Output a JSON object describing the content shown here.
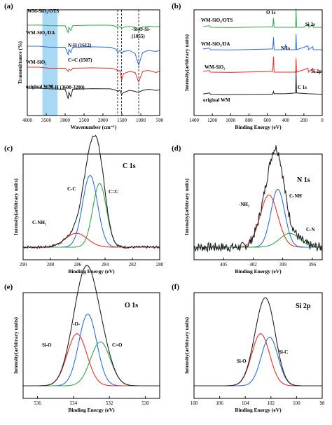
{
  "colors": {
    "black": "#222222",
    "red": "#e8302a",
    "green": "#2ea84a",
    "blue": "#2e6fd4",
    "shade": "#a9d8f5"
  },
  "chart_data": [
    {
      "panel": "(a)",
      "type": "line",
      "xlabel": "Wavenumber (cm⁻¹)",
      "ylabel": "Transmittance (%)",
      "xlim": [
        4000,
        500
      ],
      "xticks": [
        4000,
        3500,
        3000,
        2500,
        2000,
        1500,
        1000,
        500
      ],
      "shaded_band": [
        3600,
        3200
      ],
      "dashed_lines": [
        1612,
        1507,
        1055
      ],
      "series": [
        {
          "name": "WM-SiO₂/OTS",
          "color": "green",
          "offset": 4,
          "points": [
            [
              4000,
              0
            ],
            [
              3700,
              0.01
            ],
            [
              3400,
              -0.02
            ],
            [
              3000,
              -0.03
            ],
            [
              2920,
              -0.35
            ],
            [
              2900,
              -0.1
            ],
            [
              2850,
              -0.25
            ],
            [
              2800,
              -0.02
            ],
            [
              2300,
              0
            ],
            [
              1800,
              0
            ],
            [
              1650,
              -0.05
            ],
            [
              1612,
              -0.12
            ],
            [
              1550,
              -0.05
            ],
            [
              1500,
              -0.15
            ],
            [
              1450,
              -0.1
            ],
            [
              1300,
              -0.05
            ],
            [
              1150,
              -0.1
            ],
            [
              1055,
              -0.25
            ],
            [
              950,
              -0.08
            ],
            [
              800,
              -0.05
            ],
            [
              600,
              -0.08
            ],
            [
              500,
              -0.05
            ]
          ]
        },
        {
          "name": "WM-SiO₂/DA",
          "color": "blue",
          "offset": 3,
          "points": [
            [
              4000,
              0
            ],
            [
              3700,
              0
            ],
            [
              3400,
              -0.05
            ],
            [
              3000,
              -0.05
            ],
            [
              2920,
              -0.4
            ],
            [
              2900,
              -0.15
            ],
            [
              2850,
              -0.3
            ],
            [
              2800,
              -0.05
            ],
            [
              2300,
              -0.03
            ],
            [
              1800,
              -0.05
            ],
            [
              1650,
              -0.15
            ],
            [
              1612,
              -0.3
            ],
            [
              1550,
              -0.2
            ],
            [
              1507,
              -0.35
            ],
            [
              1450,
              -0.25
            ],
            [
              1300,
              -0.2
            ],
            [
              1150,
              -0.35
            ],
            [
              1055,
              -0.9
            ],
            [
              950,
              -0.3
            ],
            [
              800,
              -0.2
            ],
            [
              600,
              -0.25
            ],
            [
              500,
              -0.2
            ]
          ]
        },
        {
          "name": "WM-SiO₂",
          "color": "red",
          "offset": 2,
          "points": [
            [
              4000,
              0
            ],
            [
              3700,
              0
            ],
            [
              3400,
              -0.05
            ],
            [
              3000,
              -0.05
            ],
            [
              2920,
              -0.2
            ],
            [
              2900,
              -0.1
            ],
            [
              2850,
              -0.15
            ],
            [
              2800,
              -0.05
            ],
            [
              2300,
              -0.03
            ],
            [
              1800,
              -0.05
            ],
            [
              1650,
              -0.1
            ],
            [
              1612,
              -0.2
            ],
            [
              1550,
              -0.15
            ],
            [
              1507,
              -0.6
            ],
            [
              1450,
              -0.3
            ],
            [
              1300,
              -0.2
            ],
            [
              1150,
              -0.25
            ],
            [
              1055,
              -0.7
            ],
            [
              950,
              -0.2
            ],
            [
              800,
              -0.15
            ],
            [
              600,
              -0.25
            ],
            [
              500,
              -0.2
            ]
          ]
        },
        {
          "name": "original WM",
          "color": "black",
          "offset": 1,
          "points": [
            [
              4000,
              0
            ],
            [
              3700,
              0
            ],
            [
              3400,
              -0.03
            ],
            [
              3000,
              -0.05
            ],
            [
              2920,
              -0.5
            ],
            [
              2900,
              -0.2
            ],
            [
              2850,
              -0.4
            ],
            [
              2800,
              -0.05
            ],
            [
              2300,
              -0.02
            ],
            [
              1800,
              -0.03
            ],
            [
              1650,
              -0.1
            ],
            [
              1612,
              -0.15
            ],
            [
              1550,
              -0.1
            ],
            [
              1507,
              -0.3
            ],
            [
              1450,
              -0.2
            ],
            [
              1300,
              -0.1
            ],
            [
              1150,
              -0.15
            ],
            [
              1055,
              -0.2
            ],
            [
              950,
              -0.1
            ],
            [
              800,
              -0.05
            ],
            [
              600,
              -0.1
            ],
            [
              500,
              -0.08
            ]
          ]
        }
      ],
      "annotations": [
        "N-H (1612)",
        "C=C (1507)",
        "-Si-O-Si-",
        "(1055)",
        "N-H (3600-3200)"
      ]
    },
    {
      "panel": "(b)",
      "type": "line",
      "xlabel": "Binding Energy (eV)",
      "ylabel": "Intensity(arbitrary units)",
      "xlim": [
        1400,
        0
      ],
      "xticks": [
        1400,
        1200,
        1000,
        800,
        600,
        400,
        200,
        0
      ],
      "series": [
        {
          "name": "WM-SiO₂/OTS",
          "color": "green",
          "offset": 4,
          "points": [
            [
              1300,
              0.05
            ],
            [
              1230,
              0.1
            ],
            [
              1220,
              0
            ],
            [
              1000,
              -0.02
            ],
            [
              540,
              0.03
            ],
            [
              532,
              0.6
            ],
            [
              525,
              0
            ],
            [
              400,
              0
            ],
            [
              290,
              0
            ],
            [
              285,
              1.2
            ],
            [
              280,
              0
            ],
            [
              200,
              0
            ],
            [
              155,
              0.2
            ],
            [
              150,
              0
            ],
            [
              102,
              0.15
            ],
            [
              98,
              0
            ],
            [
              0,
              0
            ]
          ]
        },
        {
          "name": "WM-SiO₂/DA",
          "color": "blue",
          "offset": 3,
          "points": [
            [
              1300,
              0.05
            ],
            [
              1230,
              0.1
            ],
            [
              1220,
              0
            ],
            [
              1000,
              -0.02
            ],
            [
              540,
              0.05
            ],
            [
              532,
              0.8
            ],
            [
              525,
              0
            ],
            [
              410,
              0
            ],
            [
              400,
              0.35
            ],
            [
              395,
              0
            ],
            [
              290,
              0
            ],
            [
              285,
              1.0
            ],
            [
              280,
              0
            ],
            [
              155,
              0.25
            ],
            [
              150,
              0
            ],
            [
              102,
              0.2
            ],
            [
              98,
              0
            ],
            [
              0,
              0
            ]
          ]
        },
        {
          "name": "WM-SiO₂",
          "color": "red",
          "offset": 2,
          "points": [
            [
              1300,
              0.05
            ],
            [
              1230,
              0.1
            ],
            [
              1220,
              0
            ],
            [
              1000,
              -0.02
            ],
            [
              540,
              0.05
            ],
            [
              532,
              1.0
            ],
            [
              525,
              0
            ],
            [
              400,
              0
            ],
            [
              290,
              0
            ],
            [
              285,
              0.9
            ],
            [
              280,
              0
            ],
            [
              155,
              0.25
            ],
            [
              150,
              0
            ],
            [
              102,
              0.25
            ],
            [
              98,
              0
            ],
            [
              0,
              0
            ]
          ]
        },
        {
          "name": "original WM",
          "color": "black",
          "offset": 1,
          "points": [
            [
              1300,
              0.03
            ],
            [
              1230,
              0.1
            ],
            [
              1220,
              0.02
            ],
            [
              1000,
              0
            ],
            [
              540,
              0.02
            ],
            [
              532,
              0.2
            ],
            [
              525,
              0.05
            ],
            [
              400,
              0.05
            ],
            [
              290,
              0.1
            ],
            [
              285,
              1.5
            ],
            [
              280,
              0.1
            ],
            [
              155,
              0.05
            ],
            [
              0,
              0.02
            ]
          ]
        }
      ],
      "annotations": [
        "O 1s",
        "Si 2s",
        "N 1s",
        "Si 2p",
        "C 1s"
      ]
    },
    {
      "panel": "(c)",
      "type": "line",
      "title": "C 1s",
      "xlabel": "Binding Energy (eV)",
      "ylabel": "Intensity(arbitrary units)",
      "xlim": [
        290,
        280
      ],
      "xticks": [
        290,
        288,
        286,
        284,
        282,
        280
      ],
      "peaks": [
        {
          "name": "C-C",
          "color": "blue",
          "center": 285.1,
          "amp": 0.62,
          "sigma": 0.55
        },
        {
          "name": "C=C",
          "color": "green",
          "center": 284.4,
          "amp": 0.55,
          "sigma": 0.5
        },
        {
          "name": "C-NH₂",
          "color": "red",
          "center": 286.1,
          "amp": 0.12,
          "sigma": 0.8
        }
      ],
      "envelope_color": "black",
      "noise": 0.02
    },
    {
      "panel": "(d)",
      "type": "line",
      "title": "N 1s",
      "xlabel": "Binding Energy (eV)",
      "ylabel": "Intensity(arbitrary units)",
      "xlim": [
        408,
        395
      ],
      "xticks": [
        405,
        402,
        399,
        396
      ],
      "peaks": [
        {
          "name": "-NH₂",
          "color": "red",
          "center": 400.4,
          "amp": 0.45,
          "sigma": 0.9
        },
        {
          "name": "C-NH",
          "color": "blue",
          "center": 399.5,
          "amp": 0.5,
          "sigma": 0.7
        },
        {
          "name": "C-N",
          "color": "green",
          "center": 398.3,
          "amp": 0.12,
          "sigma": 1.0
        }
      ],
      "envelope_color": "black",
      "noise": 0.08
    },
    {
      "panel": "(e)",
      "type": "line",
      "title": "O 1s",
      "xlabel": "Binding Energy (eV)",
      "ylabel": "Intensity(arbitrary units)",
      "xlim": [
        536.8,
        529.2
      ],
      "xticks": [
        536,
        534,
        532,
        530
      ],
      "peaks": [
        {
          "name": "-O-",
          "color": "blue",
          "center": 533.2,
          "amp": 0.62,
          "sigma": 0.5
        },
        {
          "name": "Si-O",
          "color": "red",
          "center": 533.8,
          "amp": 0.45,
          "sigma": 0.55
        },
        {
          "name": "C=O",
          "color": "green",
          "center": 532.5,
          "amp": 0.38,
          "sigma": 0.55
        }
      ],
      "envelope_color": "black",
      "noise": 0
    },
    {
      "panel": "(f)",
      "type": "line",
      "title": "Si 2p",
      "xlabel": "Binding Energy (eV)",
      "ylabel": "Intensity(arbitrary units)",
      "xlim": [
        108,
        98
      ],
      "xticks": [
        108,
        106,
        104,
        102,
        100,
        98
      ],
      "peaks": [
        {
          "name": "Si-O",
          "color": "red",
          "center": 102.8,
          "amp": 0.45,
          "sigma": 0.7
        },
        {
          "name": "Si-C",
          "color": "blue",
          "center": 102.1,
          "amp": 0.42,
          "sigma": 0.65
        }
      ],
      "envelope_color": "black",
      "noise": 0
    }
  ]
}
